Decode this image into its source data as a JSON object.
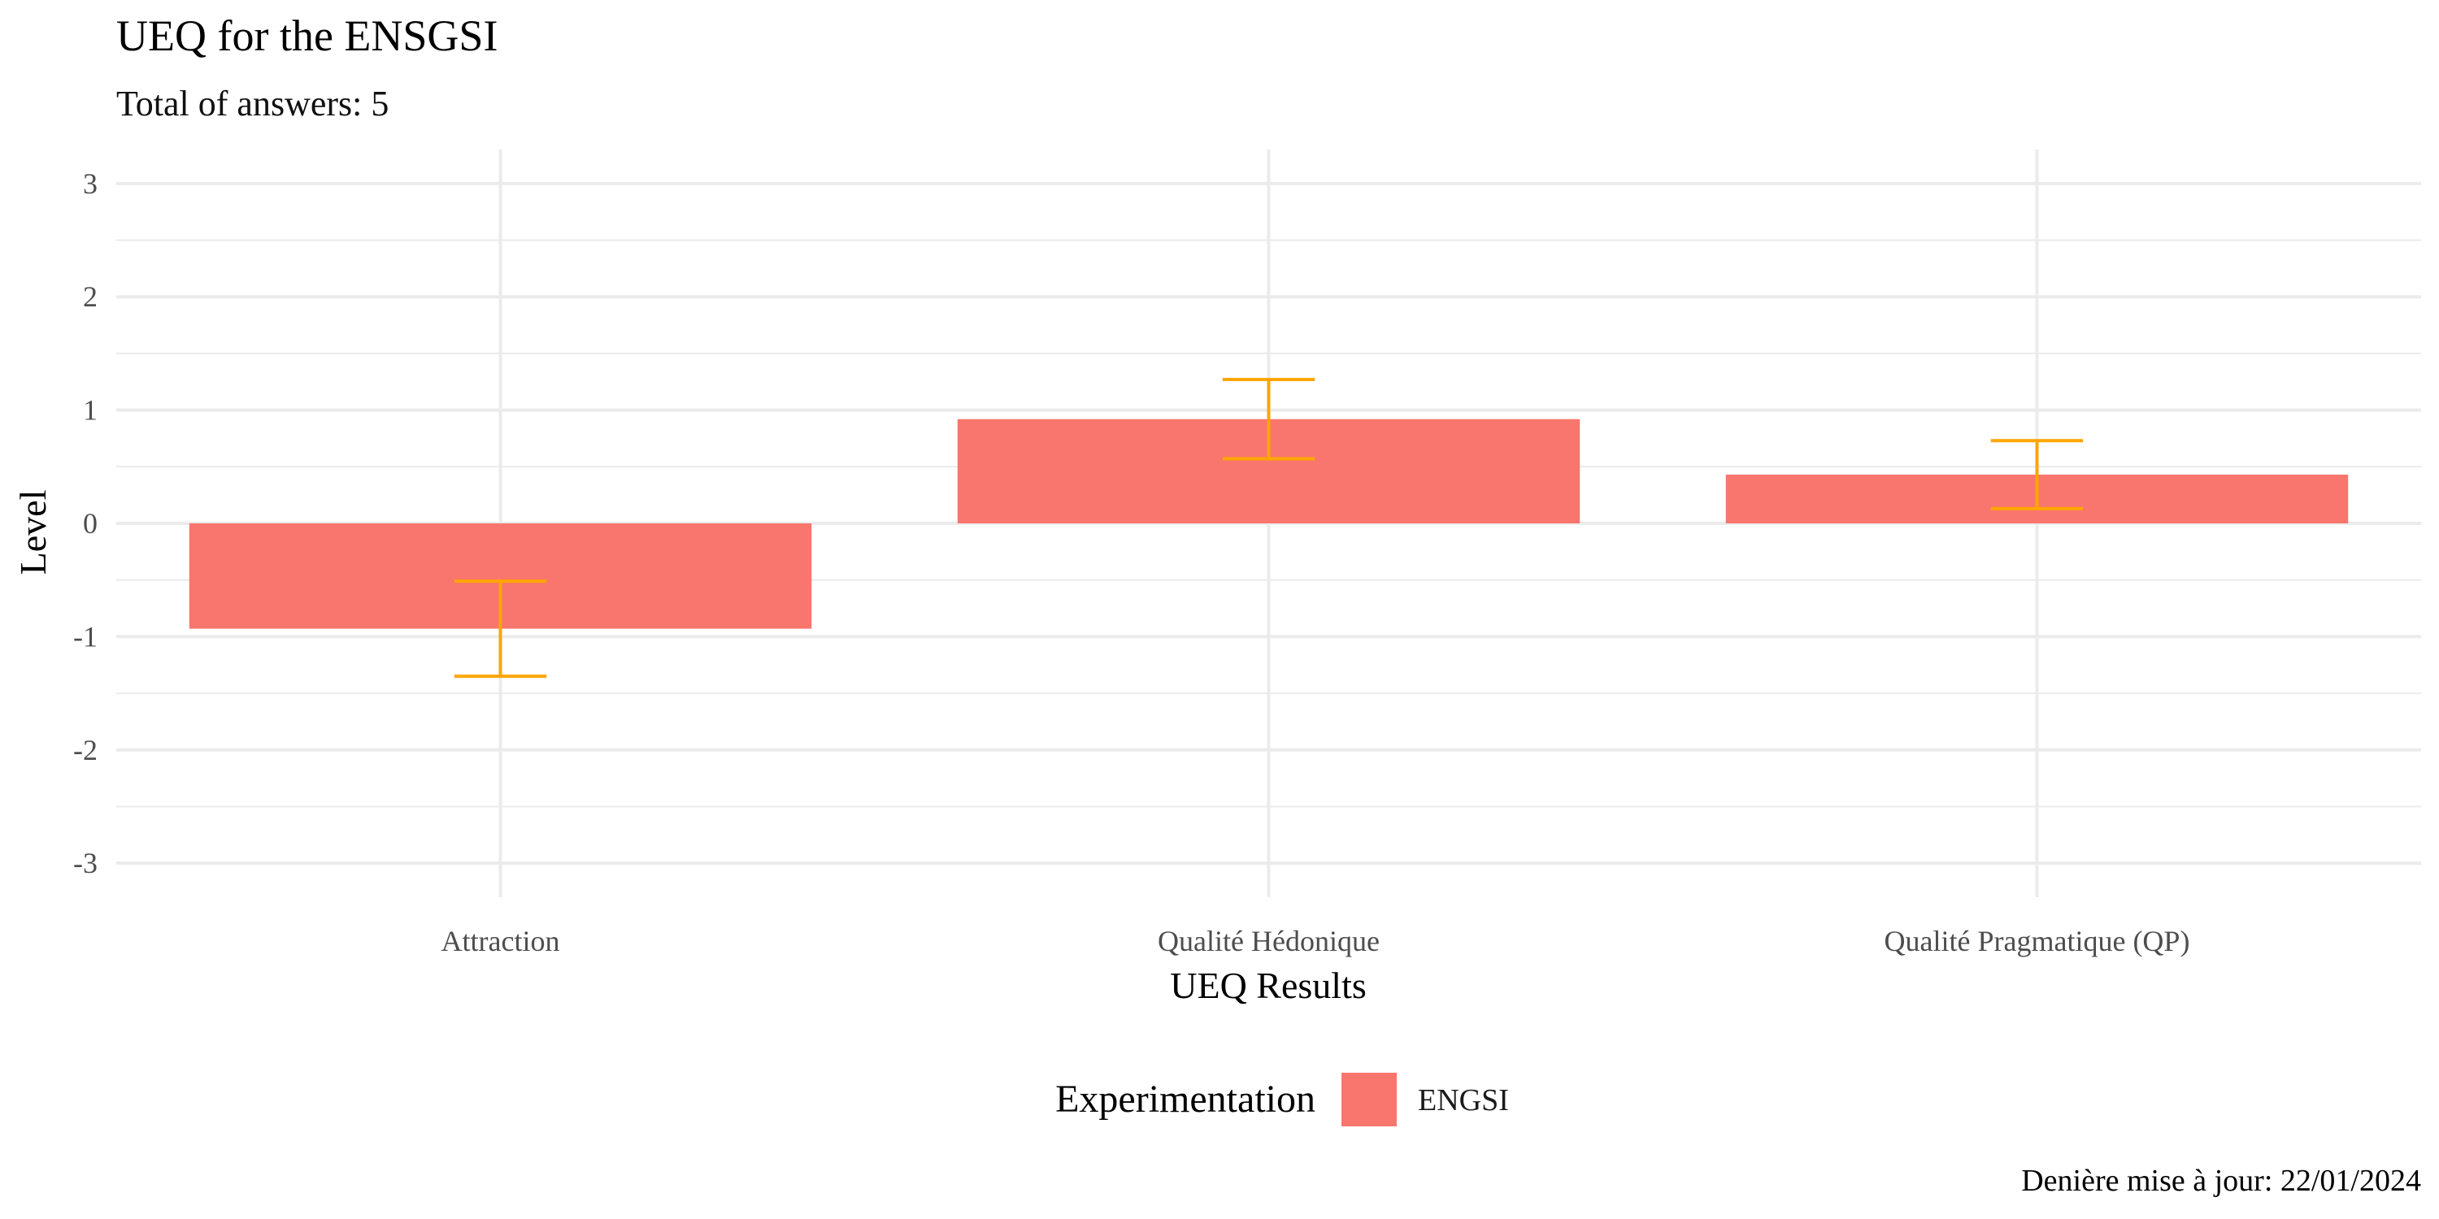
{
  "chart_data": {
    "type": "bar",
    "title": "UEQ for the ENSGSI",
    "subtitle": "Total of answers: 5",
    "xlabel": "UEQ Results",
    "ylabel": "Level",
    "categories": [
      "Attraction",
      "Qualité Hédonique",
      "Qualité Pragmatique (QP)"
    ],
    "series": [
      {
        "name": "ENGSI",
        "color": "#F8766D",
        "values": [
          -0.93,
          0.92,
          0.43
        ],
        "error_low": [
          -1.35,
          0.57,
          0.13
        ],
        "error_high": [
          -0.51,
          1.27,
          0.73
        ]
      }
    ],
    "error_bar_color": "#FFA500",
    "ylim": [
      -3.3,
      3.3
    ],
    "yticks": [
      -3,
      -2,
      -1,
      0,
      1,
      2,
      3
    ],
    "ytick_labels": [
      "-3",
      "-2",
      "-1",
      "0",
      "1",
      "2",
      "3"
    ],
    "grid": true,
    "legend": {
      "title": "Experimentation",
      "position": "bottom",
      "labels": [
        "ENGSI"
      ]
    },
    "caption": "Denière mise à jour:  22/01/2024"
  }
}
